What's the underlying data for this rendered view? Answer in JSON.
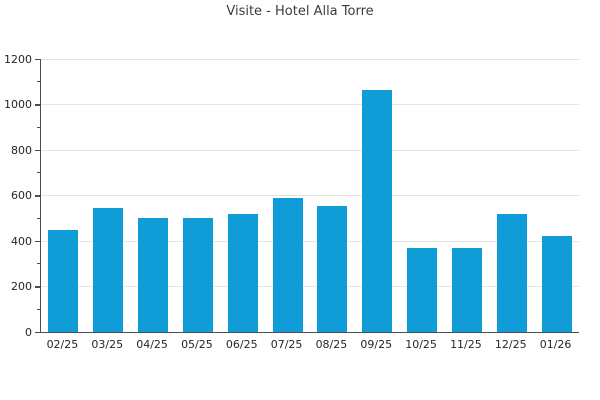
{
  "chart_data": {
    "type": "bar",
    "title": "Visite - Hotel Alla Torre",
    "categories": [
      "02/25",
      "03/25",
      "04/25",
      "05/25",
      "06/25",
      "07/25",
      "08/25",
      "09/25",
      "10/25",
      "11/25",
      "12/25",
      "01/26"
    ],
    "values": [
      450,
      545,
      500,
      500,
      520,
      590,
      555,
      1065,
      370,
      370,
      520,
      420
    ],
    "xlabel": "",
    "ylabel": "",
    "ylim": [
      0,
      1200
    ],
    "y_major_step": 200,
    "y_minor_step": 100,
    "y_tick_labels": [
      "0",
      "200",
      "400",
      "600",
      "800",
      "1000",
      "1200"
    ],
    "grid": "horizontal-only",
    "legend": "none",
    "bar_color": "#109cd6",
    "colors": {
      "background": "#ffffff",
      "grid": "#e5e5e5",
      "axis": "#4d4d4d",
      "tick_text": "#262626",
      "title_text": "#3c3c3c"
    }
  }
}
